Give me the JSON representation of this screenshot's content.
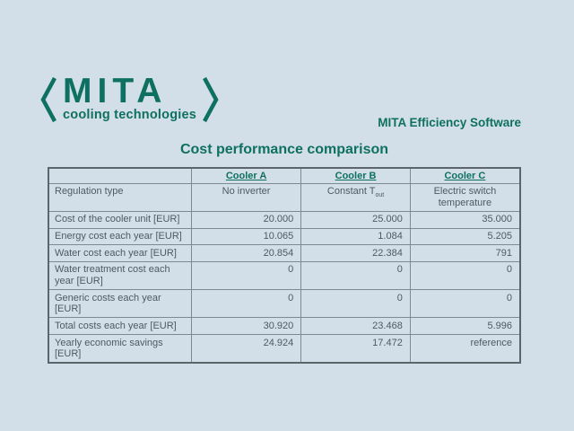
{
  "theme": {
    "background": "#d3dfe8",
    "accent_teal": "#0e7060",
    "table_text": "#4d5a62",
    "table_border": "#7e8a91",
    "table_outer_border": "#5a656c"
  },
  "logo": {
    "wordmark": "MITA",
    "tagline": "cooling technologies"
  },
  "header": {
    "app_title": "MITA Efficiency Software",
    "page_title": "Cost performance comparison"
  },
  "table": {
    "columns": [
      "",
      "Cooler A",
      "Cooler B",
      "Cooler C"
    ],
    "rows": [
      {
        "label": "Regulation type",
        "align": "center",
        "values": [
          "No inverter",
          {
            "base": "Constant T",
            "sub": "out"
          },
          "Electric switch temperature"
        ]
      },
      {
        "label": "Cost of the cooler unit [EUR]",
        "align": "right",
        "values": [
          "20.000",
          "25.000",
          "35.000"
        ]
      },
      {
        "label": "Energy cost each year [EUR]",
        "align": "right",
        "values": [
          "10.065",
          "1.084",
          "5.205"
        ]
      },
      {
        "label": "Water cost each year [EUR]",
        "align": "right",
        "values": [
          "20.854",
          "22.384",
          "791"
        ]
      },
      {
        "label": "Water treatment cost each year [EUR]",
        "align": "right",
        "values": [
          "0",
          "0",
          "0"
        ]
      },
      {
        "label": "Generic costs each year [EUR]",
        "align": "right",
        "values": [
          "0",
          "0",
          "0"
        ]
      },
      {
        "label": "Total costs each year [EUR]",
        "align": "right",
        "values": [
          "30.920",
          "23.468",
          "5.996"
        ]
      },
      {
        "label": "Yearly economic savings [EUR]",
        "align": "right",
        "values": [
          "24.924",
          "17.472",
          "reference"
        ]
      }
    ]
  }
}
